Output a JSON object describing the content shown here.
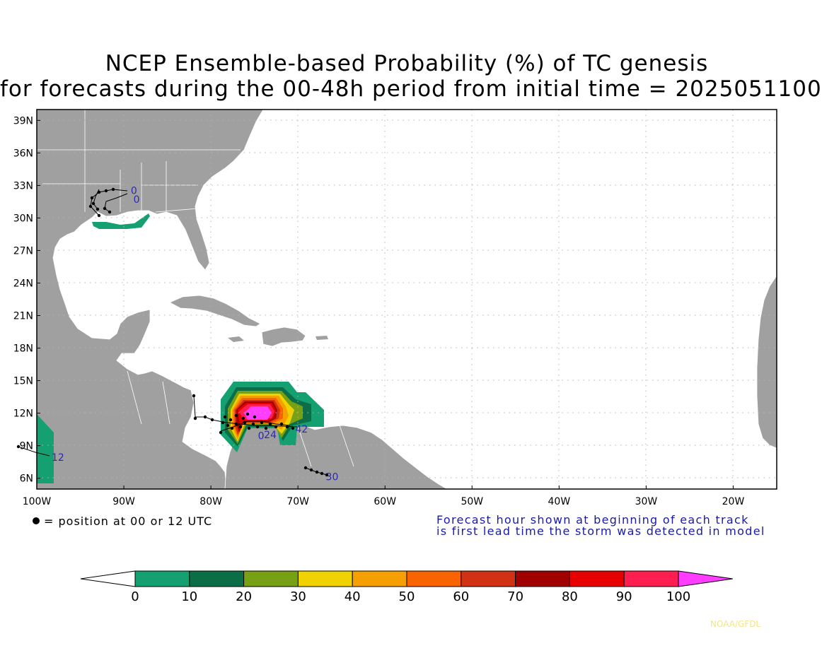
{
  "title": {
    "line1": "NCEP Ensemble-based Probability (%) of TC genesis",
    "line2": "for forecasts during the 00-48h period from initial time = 2025051100"
  },
  "axes": {
    "lat_labels": [
      "39N",
      "36N",
      "33N",
      "30N",
      "27N",
      "24N",
      "21N",
      "18N",
      "15N",
      "12N",
      "9N",
      "6N"
    ],
    "lon_labels": [
      "100W",
      "90W",
      "80W",
      "70W",
      "60W",
      "50W",
      "40W",
      "30W",
      "20W"
    ]
  },
  "map": {
    "extent": {
      "lon": [
        -100,
        -15
      ],
      "lat": [
        5,
        40
      ]
    },
    "land_color": "#a0a0a0",
    "ocean_color": "#ffffff",
    "grid": "dotted"
  },
  "track_labels": [
    {
      "text": "0",
      "lon": -89.2,
      "lat": 32.2
    },
    {
      "text": "0",
      "lon": -88.9,
      "lat": 31.4
    },
    {
      "text": "12",
      "lon": -98.3,
      "lat": 7.6
    },
    {
      "text": "0",
      "lon": -74.6,
      "lat": 9.6
    },
    {
      "text": "24",
      "lon": -73.9,
      "lat": 9.7
    },
    {
      "text": "42",
      "lon": -70.3,
      "lat": 10.2
    },
    {
      "text": "30",
      "lon": -66.8,
      "lat": 5.8
    }
  ],
  "legend": {
    "position_note": "= position at 00 or 12 UTC",
    "forecast_note_1": "Forecast hour shown at beginning of each track",
    "forecast_note_2": "is first lead time the storm was detected in model"
  },
  "colorbar": {
    "levels": [
      "0",
      "10",
      "20",
      "30",
      "40",
      "50",
      "60",
      "70",
      "80",
      "90",
      "100"
    ],
    "colors": [
      "#14a070",
      "#0c6e46",
      "#78a014",
      "#f0d200",
      "#f5a000",
      "#fa6400",
      "#d23214",
      "#a00000",
      "#e60000",
      "#ff1e50",
      "#ff3cff"
    ]
  },
  "credit": "NOAA/GFDL"
}
